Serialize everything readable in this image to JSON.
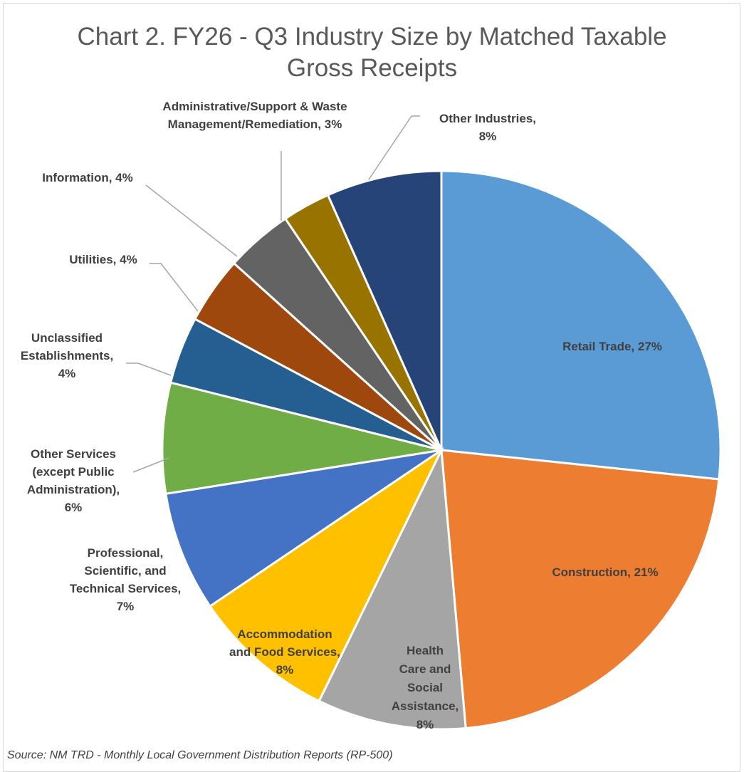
{
  "chart_data": {
    "type": "pie",
    "title": "Chart 2. FY26 - Q3 Industry Size by Matched Taxable Gross Receipts",
    "title_lines": [
      "Chart 2. FY26 - Q3 Industry Size by Matched Taxable",
      "Gross Receipts"
    ],
    "source": "Source: NM TRD - Monthly Local Government Distribution Reports (RP-500)",
    "slices": [
      {
        "label": "Retail Trade",
        "percent": 27,
        "label_lines": [
          "Retail Trade, 27%"
        ],
        "color": "#5B9BD5"
      },
      {
        "label": "Construction",
        "percent": 21,
        "label_lines": [
          "Construction, 21%"
        ],
        "color": "#ED7D31"
      },
      {
        "label": "Health Care and Social Assistance",
        "percent": 8,
        "label_lines": [
          "Health",
          "Care and",
          "Social",
          "Assistance,",
          "8%"
        ],
        "color": "#A5A5A5"
      },
      {
        "label": "Accommodation and Food Services",
        "percent": 8,
        "label_lines": [
          "Accommodation",
          "and Food Services,",
          "8%"
        ],
        "color": "#FFC000"
      },
      {
        "label": "Professional, Scientific, and Technical Services",
        "percent": 7,
        "label_lines": [
          "Professional,",
          "Scientific, and",
          "Technical Services,",
          "7%"
        ],
        "color": "#4472C4"
      },
      {
        "label": "Other Services (except Public Administration)",
        "percent": 6,
        "label_lines": [
          "Other Services",
          "(except Public",
          "Administration),",
          "6%"
        ],
        "color": "#70AD47"
      },
      {
        "label": "Unclassified Establishments",
        "percent": 4,
        "label_lines": [
          "Unclassified",
          "Establishments,",
          "4%"
        ],
        "color": "#255E91"
      },
      {
        "label": "Utilities",
        "percent": 4,
        "label_lines": [
          "Utilities, 4%"
        ],
        "color": "#9E480E"
      },
      {
        "label": "Information",
        "percent": 4,
        "label_lines": [
          "Information, 4%"
        ],
        "color": "#636363"
      },
      {
        "label": "Administrative/Support & Waste Management/Remediation",
        "percent": 3,
        "label_lines": [
          "Administrative/Support & Waste",
          "Management/Remediation, 3%"
        ],
        "color": "#997300"
      },
      {
        "label": "Other Industries",
        "percent": 8,
        "label_lines": [
          "Other Industries,",
          "8%"
        ],
        "color": "#264478"
      }
    ]
  }
}
